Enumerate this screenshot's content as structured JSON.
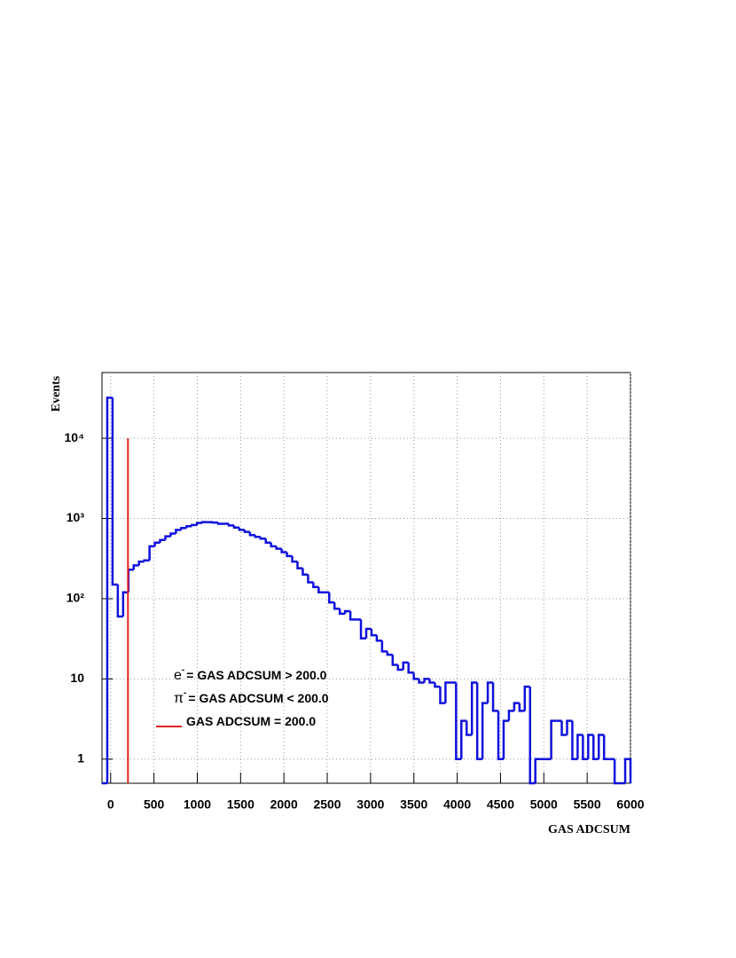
{
  "chart_data": {
    "type": "histogram",
    "xlabel": "GAS ADCSUM",
    "ylabel": "Events",
    "log_y": true,
    "grid": true,
    "color": "#1010dd",
    "xlim": [
      -100,
      6000
    ],
    "ylim": [
      0.5,
      66000
    ],
    "xticks": [
      0,
      500,
      1000,
      1500,
      2000,
      2500,
      3000,
      3500,
      4000,
      4500,
      5000,
      5500,
      6000
    ],
    "yticks": [
      1,
      10,
      {
        "value": 100,
        "label": "10²"
      },
      {
        "value": 1000,
        "label": "10³"
      },
      {
        "value": 10000,
        "label": "10⁴"
      }
    ],
    "bins": [
      -100,
      -39,
      22,
      83,
      144,
      205,
      266,
      327,
      388,
      449,
      510,
      571,
      632,
      693,
      754,
      815,
      876,
      937,
      998,
      1059,
      1120,
      1181,
      1242,
      1303,
      1364,
      1425,
      1486,
      1547,
      1608,
      1669,
      1730,
      1791,
      1852,
      1913,
      1974,
      2035,
      2096,
      2157,
      2218,
      2279,
      2340,
      2401,
      2462,
      2523,
      2584,
      2645,
      2706,
      2767,
      2828,
      2889,
      2950,
      3011,
      3072,
      3133,
      3194,
      3255,
      3316,
      3377,
      3438,
      3499,
      3560,
      3621,
      3682,
      3743,
      3804,
      3865,
      3926,
      3987,
      4048,
      4109,
      4170,
      4231,
      4292,
      4353,
      4414,
      4475,
      4536,
      4597,
      4658,
      4719,
      4780,
      4841,
      4902,
      4963,
      5024,
      5085,
      5146,
      5207,
      5268,
      5329,
      5390,
      5451,
      5512,
      5573,
      5634,
      5695,
      5756,
      5817,
      5878,
      5939,
      6000
    ],
    "values": [
      0,
      32000,
      150,
      60,
      120,
      230,
      260,
      290,
      300,
      450,
      500,
      540,
      600,
      650,
      720,
      760,
      800,
      830,
      880,
      900,
      900,
      890,
      860,
      860,
      820,
      770,
      720,
      680,
      620,
      590,
      560,
      500,
      450,
      420,
      380,
      340,
      290,
      240,
      200,
      160,
      140,
      120,
      120,
      90,
      75,
      65,
      70,
      55,
      55,
      32,
      42,
      35,
      30,
      22,
      20,
      15,
      13,
      16,
      12,
      10,
      9,
      10,
      9,
      8,
      5,
      9,
      9,
      1,
      3,
      2,
      9,
      1,
      5,
      9,
      4,
      1,
      3,
      4,
      5,
      4,
      8,
      0,
      1,
      1,
      1,
      3,
      3,
      2,
      3,
      1,
      2,
      1,
      2,
      1,
      2,
      1,
      1,
      0,
      0,
      1
    ],
    "cut": {
      "x": 200,
      "y": 10000,
      "color": "#e02020"
    },
    "legend": [
      {
        "particle": "e",
        "charge": "-",
        "text": "= GAS ADCSUM  >   200.0"
      },
      {
        "particle": "π",
        "charge": "-",
        "text": "= GAS ADCSUM  <   200.0"
      },
      {
        "text": "GAS ADCSUM  =  200.0"
      }
    ]
  }
}
